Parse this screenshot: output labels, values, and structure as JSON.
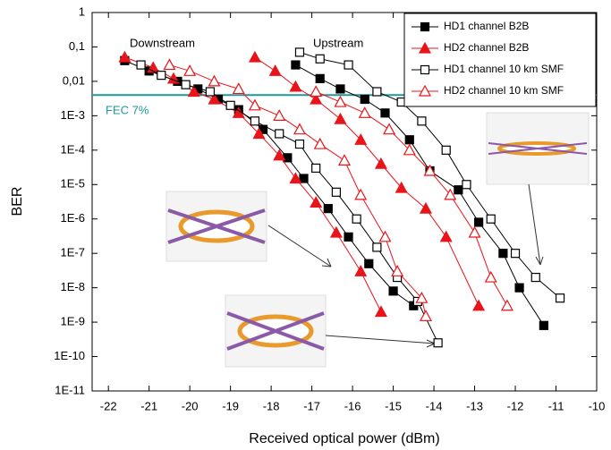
{
  "chart_data": {
    "type": "line",
    "log_y": true,
    "x_label": "Received optical power (dBm)",
    "y_label": "BER",
    "xlim": [
      -22.4,
      -10
    ],
    "xticks": [
      -22,
      -21,
      -20,
      -19,
      -18,
      -17,
      -16,
      -15,
      -14,
      -13,
      -12,
      -11,
      -10
    ],
    "ylim": [
      1e-11,
      1
    ],
    "yticks": [
      {
        "value": 1e-11,
        "label": "1E-11"
      },
      {
        "value": 1e-10,
        "label": "1E-10"
      },
      {
        "value": 1e-09,
        "label": "1E-9"
      },
      {
        "value": 1e-08,
        "label": "1E-8"
      },
      {
        "value": 1e-07,
        "label": "1E-7"
      },
      {
        "value": 1e-06,
        "label": "1E-6"
      },
      {
        "value": 1e-05,
        "label": "1E-5"
      },
      {
        "value": 0.0001,
        "label": "1E-4"
      },
      {
        "value": 0.001,
        "label": "1E-3"
      },
      {
        "value": 0.01,
        "label": "0,01"
      },
      {
        "value": 0.1,
        "label": "0,1"
      },
      1
    ],
    "annotations": [
      "Downstream",
      "Upstream"
    ],
    "threshold": {
      "label": "FEC 7%",
      "value": 0.004,
      "color": "#1f9a9a"
    },
    "series": [
      {
        "name": "HD1 channel B2B",
        "color": "#000000",
        "marker": "square",
        "filled": true,
        "x": [
          -21.6,
          -21.0,
          -20.3,
          -19.8,
          -19.3,
          -18.8,
          -18.2,
          -17.6,
          -17.2,
          -16.6,
          -16.1,
          -15.6,
          -15.0,
          -14.5,
          null,
          -17.4,
          -16.8,
          -16.3,
          -15.7,
          -15.2,
          -14.6,
          -14.1,
          -13.4,
          -12.9,
          -12.3,
          -11.9,
          -11.3
        ],
        "values": [
          0.04,
          0.02,
          0.01,
          0.006,
          0.003,
          0.0015,
          0.0004,
          6e-05,
          1.5e-05,
          2e-06,
          3e-07,
          5e-08,
          8e-09,
          3e-09,
          null,
          0.03,
          0.012,
          0.006,
          0.003,
          0.0012,
          0.0002,
          2.5e-05,
          7e-06,
          8e-07,
          1e-07,
          1e-08,
          8e-10
        ]
      },
      {
        "name": "HD2 channel B2B",
        "color": "#e8141a",
        "marker": "triangle",
        "filled": true,
        "x": [
          -21.6,
          -20.9,
          -20.4,
          -19.9,
          -19.4,
          -18.8,
          -18.3,
          -17.8,
          -17.4,
          -16.9,
          -16.4,
          -15.8,
          -15.3,
          null,
          -18.4,
          -17.9,
          -17.4,
          -16.9,
          -16.3,
          -15.8,
          -15.3,
          -14.8,
          -14.2,
          -13.7,
          -12.9
        ],
        "values": [
          0.05,
          0.025,
          0.012,
          0.005,
          0.003,
          0.0012,
          0.0003,
          7e-05,
          1.5e-05,
          3e-06,
          4e-07,
          3e-08,
          2e-09,
          null,
          0.05,
          0.02,
          0.007,
          0.003,
          0.0008,
          0.0002,
          4e-05,
          8e-06,
          2e-06,
          3e-07,
          3e-09
        ]
      },
      {
        "name": "HD1 channel 10 km SMF",
        "color": "#000000",
        "marker": "square",
        "filled": false,
        "x": [
          -21.2,
          -20.7,
          -20.1,
          -19.5,
          -19.0,
          -18.4,
          -17.8,
          -17.3,
          -16.9,
          -16.4,
          -15.9,
          -15.4,
          -14.9,
          -14.4,
          -13.9,
          null,
          -17.3,
          -16.8,
          -16.1,
          -15.4,
          -14.8,
          -14.3,
          -13.7,
          -13.2,
          -12.6,
          -12.0,
          -11.5,
          -10.9
        ],
        "values": [
          0.03,
          0.015,
          0.008,
          0.005,
          0.002,
          0.0007,
          0.0003,
          0.00015,
          3e-05,
          6e-06,
          1e-06,
          1.5e-07,
          2e-08,
          4e-09,
          2.5e-10,
          null,
          0.07,
          0.045,
          0.03,
          0.005,
          0.0025,
          0.0007,
          0.0001,
          1e-05,
          1e-06,
          1e-07,
          2e-08,
          5e-09
        ]
      },
      {
        "name": "HD2 channel 10 km SMF",
        "color": "#e8141a",
        "marker": "triangle",
        "filled": false,
        "x": [
          -20.5,
          -20.0,
          -19.4,
          -18.8,
          -18.4,
          -17.8,
          -17.3,
          -16.8,
          -16.2,
          -15.8,
          -15.2,
          -14.9,
          -14.3,
          -14.2,
          null,
          -16.9,
          -16.3,
          -15.7,
          -15.1,
          -14.6,
          -14.1,
          -13.6,
          -13.0,
          -12.6,
          -12.2
        ],
        "values": [
          0.03,
          0.02,
          0.01,
          0.006,
          0.002,
          0.001,
          0.0004,
          0.00015,
          5e-05,
          5e-06,
          3e-07,
          3e-08,
          5e-09,
          1.5e-09,
          null,
          0.005,
          0.0025,
          0.0012,
          0.0004,
          0.0001,
          2.5e-05,
          5e-06,
          4e-07,
          2e-08,
          3e-09
        ]
      }
    ]
  }
}
